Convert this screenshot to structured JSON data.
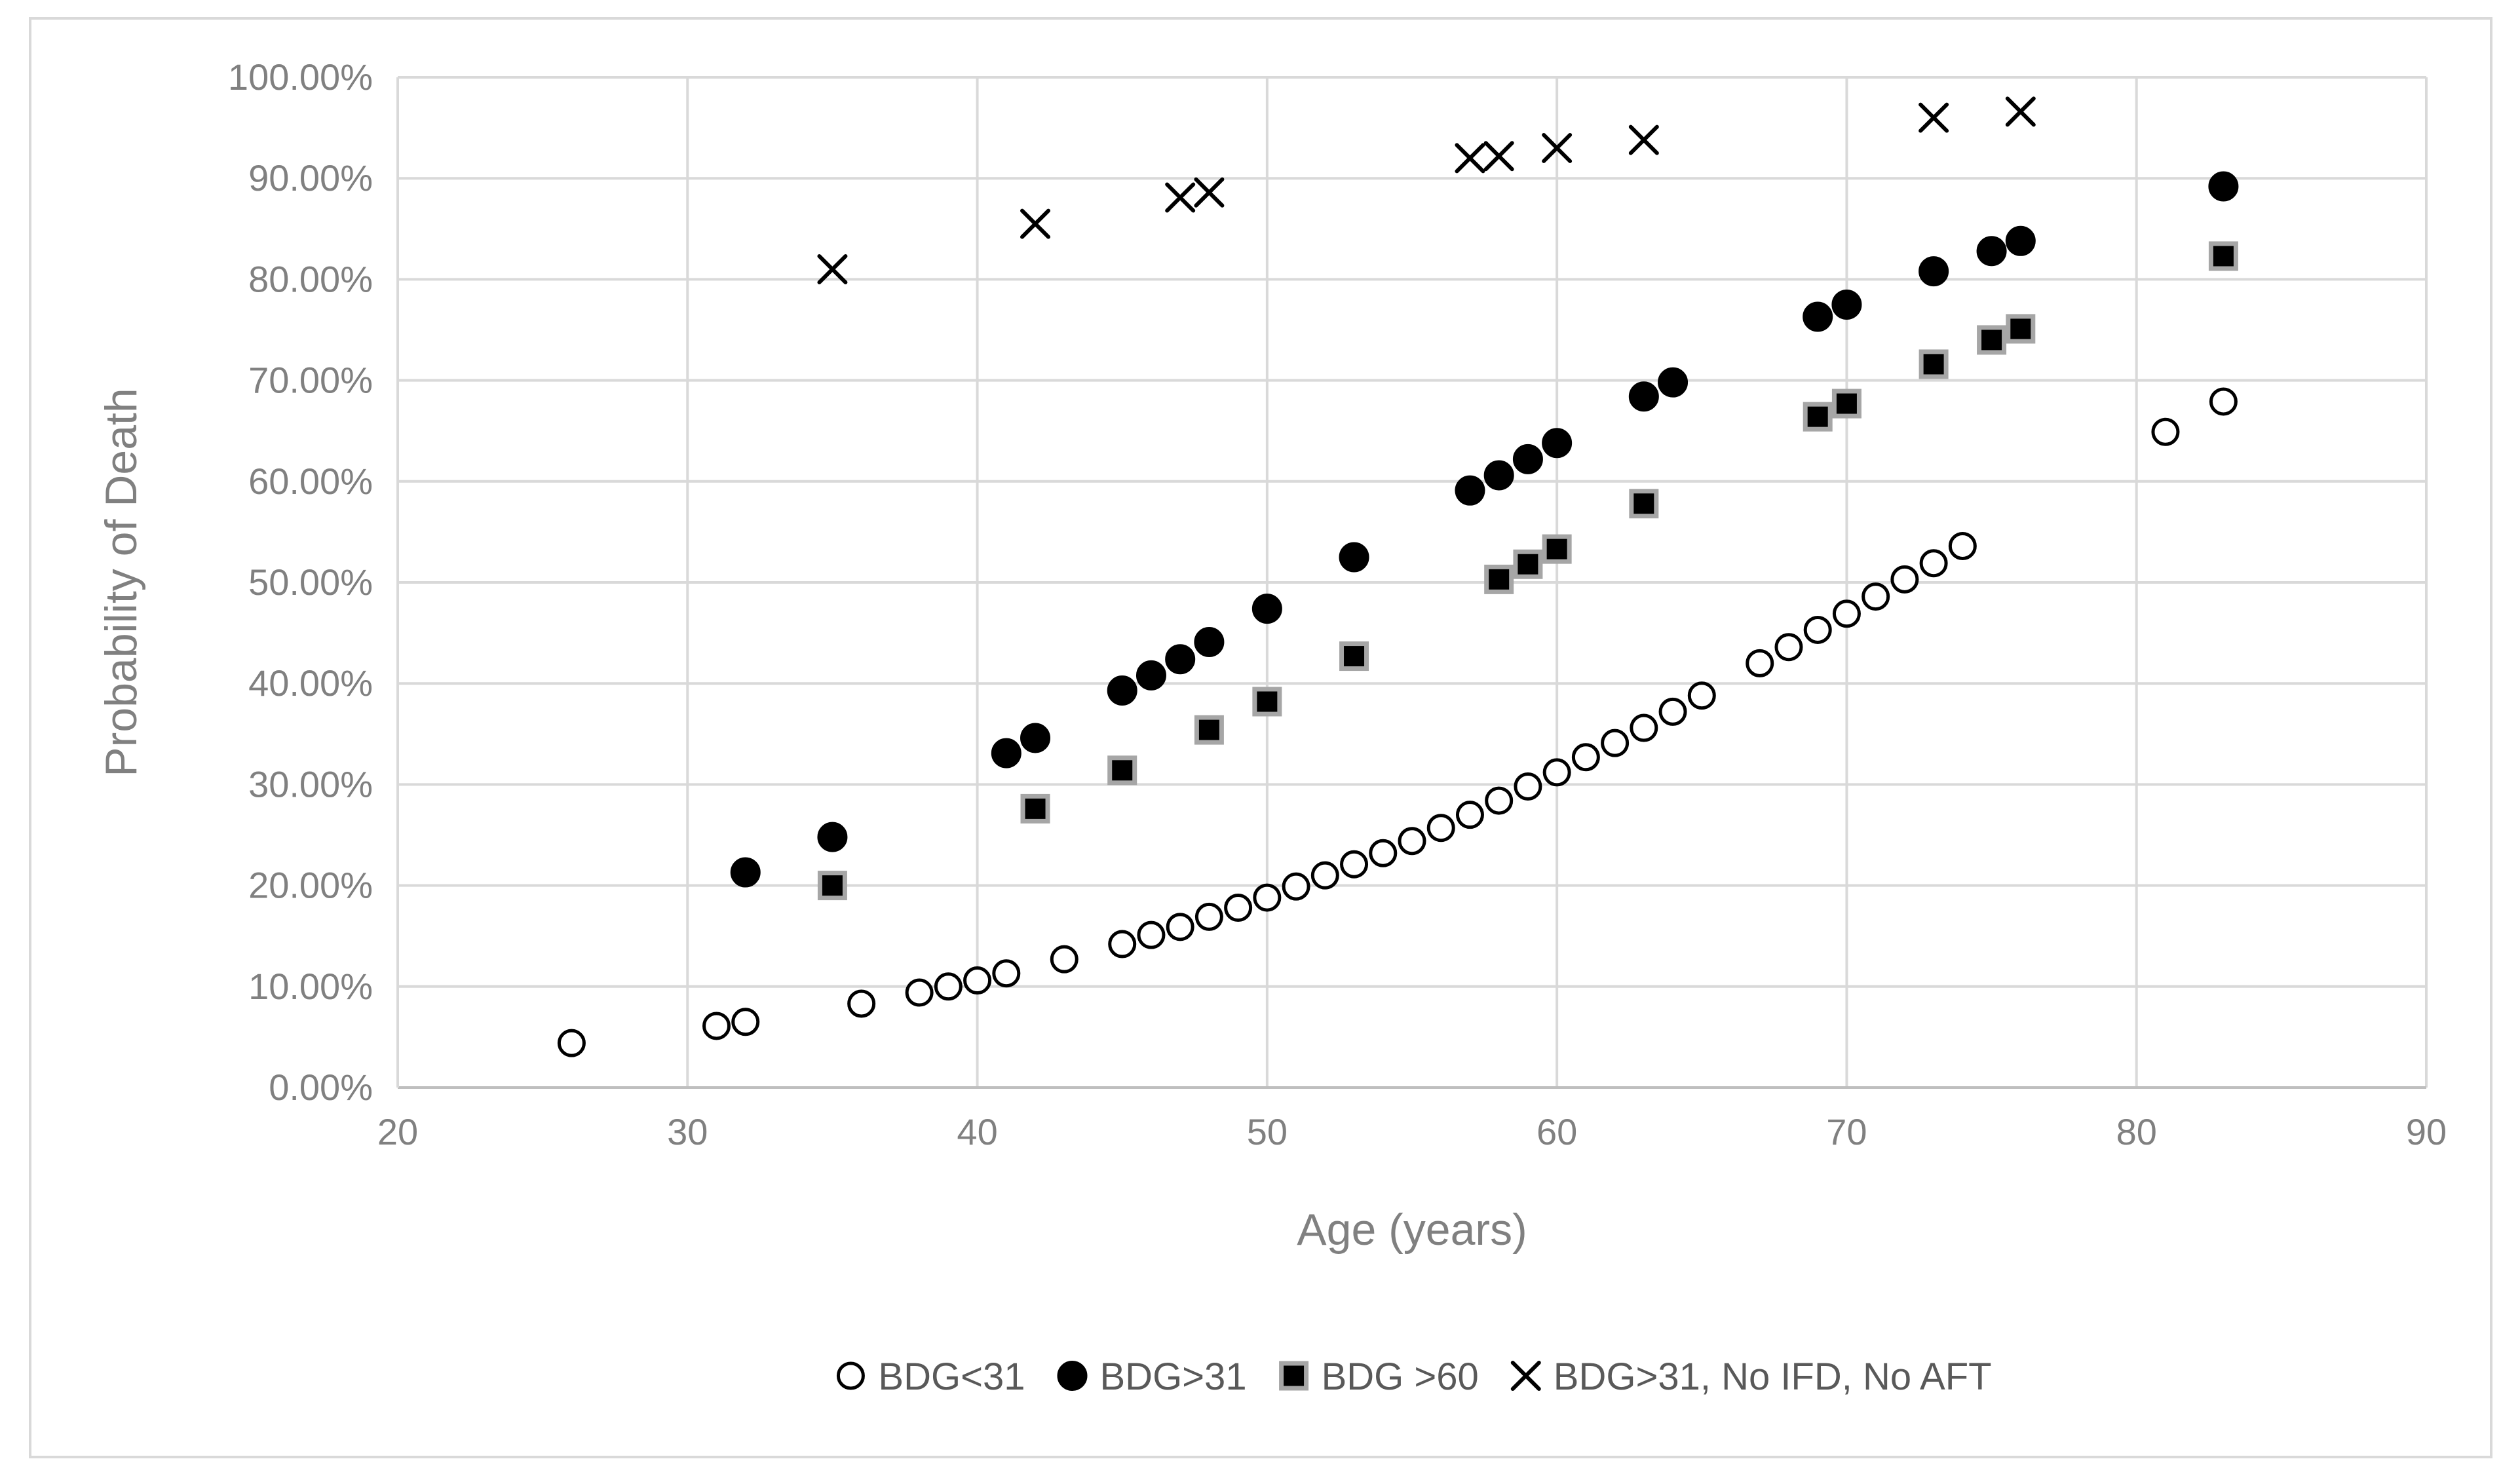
{
  "chart_data": {
    "type": "scatter",
    "title": "",
    "xlabel": "Age (years)",
    "ylabel": "Probability of Death",
    "xlim": [
      20,
      90
    ],
    "ylim": [
      0,
      100
    ],
    "x_ticks": [
      "20",
      "30",
      "40",
      "50",
      "60",
      "70",
      "80",
      "90"
    ],
    "y_ticks": [
      "0.00%",
      "10.00%",
      "20.00%",
      "30.00%",
      "40.00%",
      "50.00%",
      "60.00%",
      "70.00%",
      "80.00%",
      "90.00%",
      "100.00%"
    ],
    "grid": true,
    "legend_position": "bottom",
    "series": [
      {
        "name": "BDG<31",
        "marker": "open-circle",
        "color": "#000000",
        "x": [
          26,
          31,
          32,
          36,
          38,
          39,
          40,
          41,
          43,
          45,
          46,
          47,
          48,
          49,
          50,
          51,
          52,
          53,
          54,
          55,
          56,
          57,
          58,
          59,
          60,
          61,
          62,
          63,
          64,
          65,
          67,
          68,
          69,
          70,
          71,
          72,
          73,
          74,
          81,
          83
        ],
        "y": [
          4.4,
          6.1,
          6.5,
          8.3,
          9.4,
          10.0,
          10.6,
          11.3,
          12.7,
          14.2,
          15.1,
          15.9,
          16.9,
          17.8,
          18.8,
          19.9,
          21.0,
          22.1,
          23.2,
          24.4,
          25.7,
          27.0,
          28.4,
          29.8,
          31.2,
          32.7,
          34.1,
          35.6,
          37.2,
          38.8,
          42.0,
          43.6,
          45.3,
          46.9,
          48.6,
          50.3,
          51.9,
          53.6,
          64.9,
          67.9
        ]
      },
      {
        "name": "BDG>31",
        "marker": "filled-circle",
        "color": "#000000",
        "x": [
          32,
          35,
          41,
          42,
          45,
          46,
          47,
          48,
          50,
          53,
          57,
          58,
          59,
          60,
          63,
          64,
          69,
          70,
          73,
          75,
          76,
          83
        ],
        "y": [
          21.3,
          24.8,
          33.1,
          34.6,
          39.3,
          40.8,
          42.4,
          44.1,
          47.4,
          52.5,
          59.1,
          60.6,
          62.2,
          63.8,
          68.4,
          69.8,
          76.3,
          77.5,
          80.8,
          82.8,
          83.8,
          89.2
        ]
      },
      {
        "name": "BDG >60",
        "marker": "filled-square",
        "color": "#000000",
        "x": [
          35,
          42,
          45,
          48,
          50,
          53,
          58,
          59,
          60,
          63,
          69,
          70,
          73,
          75,
          76,
          83
        ],
        "y": [
          20.0,
          27.6,
          31.4,
          35.4,
          38.2,
          42.7,
          50.3,
          51.8,
          53.3,
          57.8,
          66.4,
          67.7,
          71.6,
          74.0,
          75.1,
          82.3
        ]
      },
      {
        "name": "BDG>31, No IFD, No AFT",
        "marker": "x",
        "color": "#000000",
        "x": [
          35,
          42,
          47,
          48,
          57,
          58,
          60,
          63,
          73,
          76
        ],
        "y": [
          81.0,
          85.5,
          88.1,
          88.6,
          92.0,
          92.2,
          93.0,
          93.8,
          96.0,
          96.6
        ]
      }
    ]
  }
}
